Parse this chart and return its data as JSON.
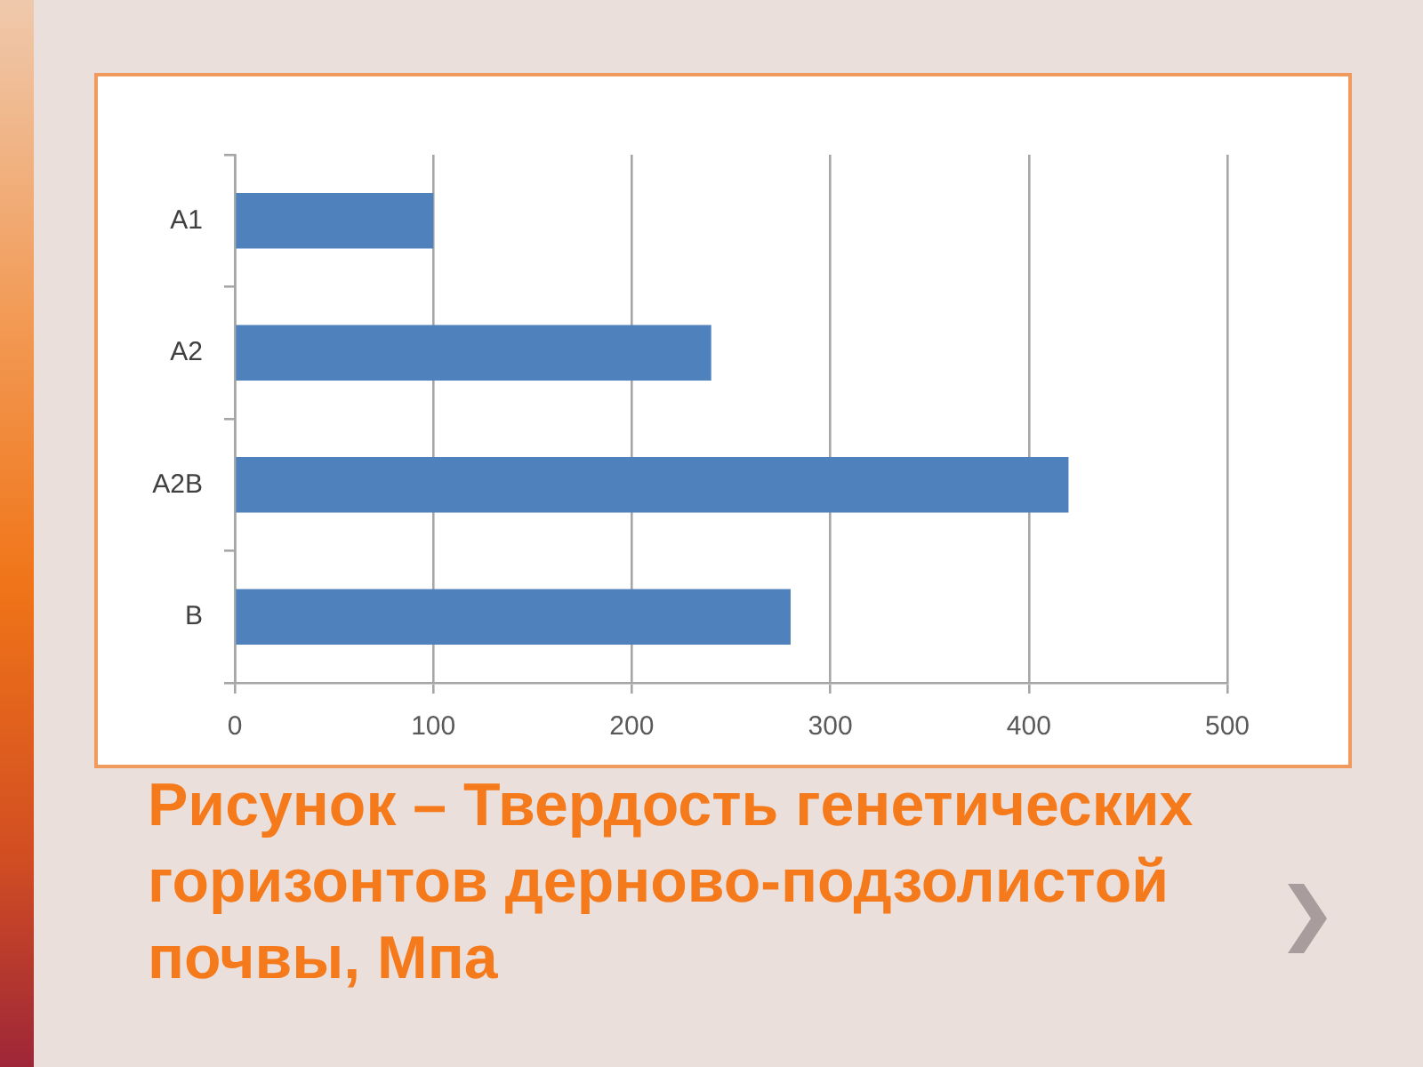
{
  "chart_data": {
    "type": "bar",
    "orientation": "horizontal",
    "title": "Рисунок – Твердость генетических горизонтов дерново-подзолистой почвы, Мпа",
    "categories": [
      "A1",
      "A2",
      "A2B",
      "B"
    ],
    "values": [
      100,
      240,
      420,
      280
    ],
    "color": "#4f81bd",
    "xlim": [
      0,
      500
    ],
    "xticks": [
      0,
      100,
      200,
      300,
      400,
      500
    ],
    "grid": "x"
  }
}
